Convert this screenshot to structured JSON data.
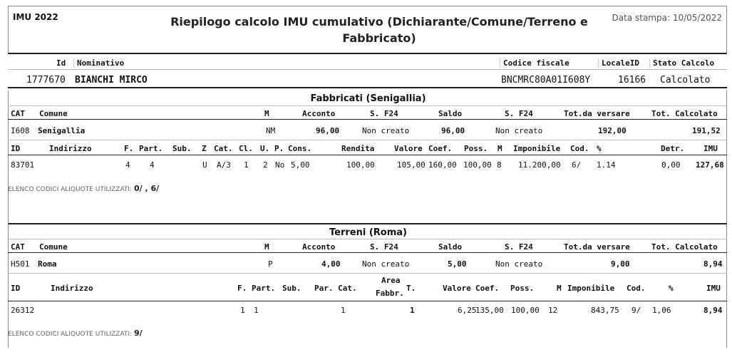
{
  "header": {
    "left_label": "IMU 2022",
    "title": "Riepilogo calcolo IMU cumulativo (Dichiarante/Comune/Terreno e Fabbricato)",
    "print_date": "Data stampa: 10/05/2022"
  },
  "person": {
    "col_id": "Id",
    "col_name": "Nominativo",
    "col_cf": "Codice fiscale",
    "col_locale": "LocaleID",
    "col_stato": "Stato Calcolo",
    "id": "1777670",
    "name": "BIANCHI MIRCO",
    "cf": "BNCMRC80A01I608Y",
    "locale": "16166",
    "stato": "Calcolato"
  },
  "fabbricati": {
    "title": "Fabbricati (Senigallia)",
    "sum_headers": [
      "CAT",
      "Comune",
      "M",
      "Acconto",
      "S. F24",
      "Saldo",
      "S. F24",
      "Tot.da versare",
      "Tot. Calcolato"
    ],
    "sum_row": {
      "cat": "I608",
      "comune": "Senigallia",
      "m": "NM",
      "acconto": "96,00",
      "sf24a": "Non creato",
      "saldo": "96,00",
      "sf24s": "Non creato",
      "tot_versare": "192,00",
      "tot_calc": "191,52"
    },
    "det_headers": [
      "ID",
      "Indirizzo",
      "F.",
      "Part.",
      "Sub.",
      "Z",
      "Cat.",
      "Cl.",
      "U.",
      "P.",
      "Cons.",
      "Rendita",
      "Valore",
      "Coef.",
      "Poss.",
      "M",
      "Imponibile",
      "Cod.",
      "%",
      "Detr.",
      "IMU"
    ],
    "det_row": {
      "id": "83701",
      "indirizzo": "",
      "f": "4",
      "part": "4",
      "sub": "",
      "z": "U",
      "cat": "A/3",
      "cl": "1",
      "u": "2",
      "p": "No",
      "cons": "5,00",
      "rendita": "100,00",
      "valore": "105,00",
      "coef": "160,00",
      "poss": "100,00",
      "m": "8",
      "imponibile": "11.200,00",
      "cod": "6/",
      "perc": "1.14",
      "detr": "0,00",
      "imu": "127,68"
    },
    "note_label": "ELENCO CODICI ALIQUOTE UTILIZZATI:",
    "note_codes": "0/ , 6/"
  },
  "terreni": {
    "title": "Terreni (Roma)",
    "sum_headers": [
      "CAT",
      "Comune",
      "M",
      "Acconto",
      "S. F24",
      "Saldo",
      "S. F24",
      "Tot.da versare",
      "Tot. Calcolato"
    ],
    "sum_row": {
      "cat": "H501",
      "comune": "Roma",
      "m": "P",
      "acconto": "4,00",
      "sf24a": "Non creato",
      "saldo": "5,00",
      "sf24s": "Non creato",
      "tot_versare": "9,00",
      "tot_calc": "8,94"
    },
    "det_headers": [
      "ID",
      "Indirizzo",
      "F.",
      "Part.",
      "Sub.",
      "Par. Cat.",
      "Area",
      "Fabbr.",
      "T.",
      "Valore",
      "Coef.",
      "Poss.",
      "M",
      "Imponibile",
      "Cod.",
      "%",
      "IMU"
    ],
    "det_row": {
      "id": "26312",
      "indirizzo": "",
      "f": "1",
      "part": "1",
      "sub": "",
      "par_cat": "1",
      "area": "",
      "t": "1",
      "valore": "6,25",
      "coef": "135,00",
      "poss": "100,00",
      "m": "12",
      "imponibile": "843,75",
      "cod": "9/",
      "perc": "1,06",
      "imu": "8,94"
    },
    "note_label": "ELENCO CODICI ALIQUOTE UTILIZZATI:",
    "note_codes": "9/"
  },
  "colors": {
    "border": "#222222",
    "grid": "#bbbbbb",
    "header_text": "#222222"
  }
}
